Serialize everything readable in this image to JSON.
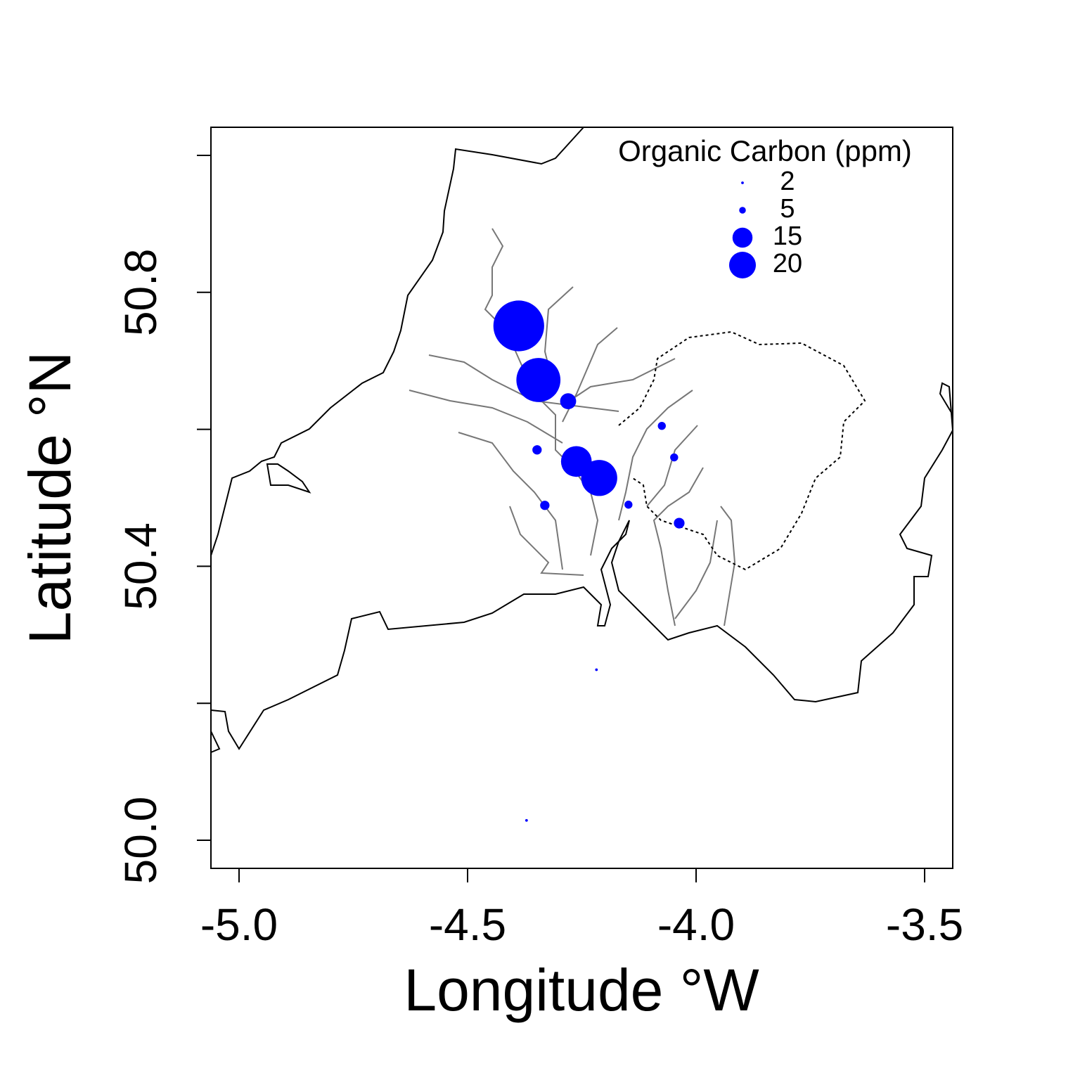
{
  "chart_data": {
    "type": "bubble",
    "x_label": "Longitude °W",
    "y_label": "Latitude °N",
    "legend_title": "Organic Carbon (ppm)",
    "legend_sizes": [
      2,
      5,
      15,
      20
    ],
    "legend_position": "top-right",
    "color": "#0000ff",
    "x": [
      -4.388,
      -4.345,
      -4.28,
      -4.075,
      -4.048,
      -4.348,
      -4.262,
      -4.212,
      -4.331,
      -4.148,
      -4.037,
      -4.218,
      -4.371
    ],
    "y": [
      50.751,
      50.672,
      50.641,
      50.605,
      50.559,
      50.57,
      50.553,
      50.529,
      50.489,
      50.49,
      50.463,
      50.249,
      50.029
    ],
    "sizes": [
      38,
      33,
      12,
      6,
      6,
      7,
      23,
      27,
      7,
      6,
      8,
      2,
      2
    ],
    "xlim": [
      -5.0615,
      -3.4385
    ],
    "ylim": [
      49.959,
      51.041
    ],
    "xticks": [
      {
        "value": -5,
        "label": "-5.0"
      },
      {
        "value": -4.5,
        "label": "-4.5"
      },
      {
        "value": -4,
        "label": "-4.0"
      },
      {
        "value": -3.5,
        "label": "-3.5"
      }
    ],
    "yticks": [
      {
        "value": 50,
        "label": "50.0"
      },
      {
        "value": 50.2,
        "label": null
      },
      50.4,
      {
        "value": 50.6,
        "label": null
      },
      50.8,
      {
        "value": 51,
        "label": null
      }
    ]
  }
}
